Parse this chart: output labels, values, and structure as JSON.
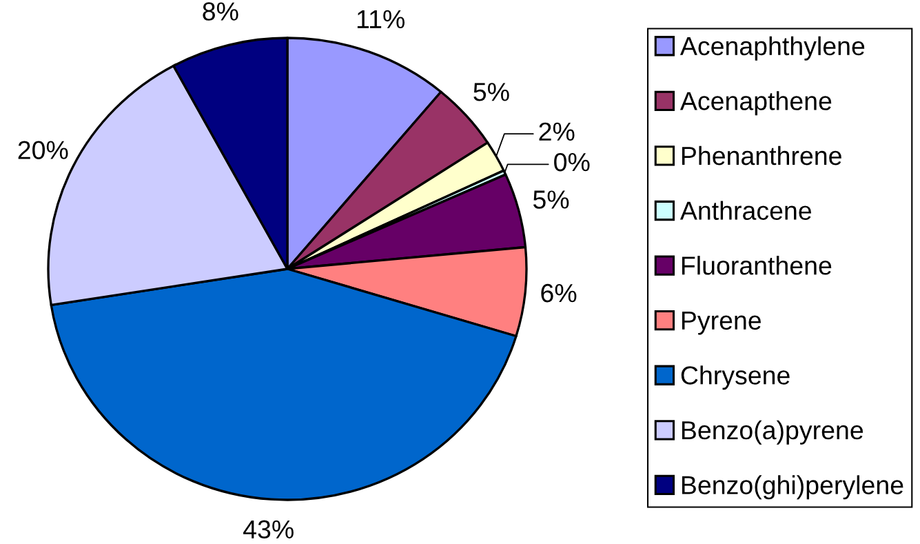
{
  "chart_data": {
    "type": "pie",
    "categories": [
      "Acenaphthylene",
      "Acenapthene",
      "Phenanthrene",
      "Anthracene",
      "Fluoranthene",
      "Pyrene",
      "Chrysene",
      "Benzo(a)pyrene",
      "Benzo(ghi)perylene"
    ],
    "values": [
      11.1,
      4.7,
      2.2,
      0.3,
      5.2,
      6.2,
      42.8,
      19.6,
      7.9
    ],
    "colors": [
      "#9999ff",
      "#993366",
      "#ffffcc",
      "#ccffff",
      "#660066",
      "#ff8080",
      "#0066cc",
      "#ccccff",
      "#000080"
    ],
    "value_labels": [
      "11%",
      "5%",
      "2%",
      "0%",
      "5%",
      "6%",
      "43%",
      "20%",
      "8%"
    ],
    "legend": "right"
  }
}
